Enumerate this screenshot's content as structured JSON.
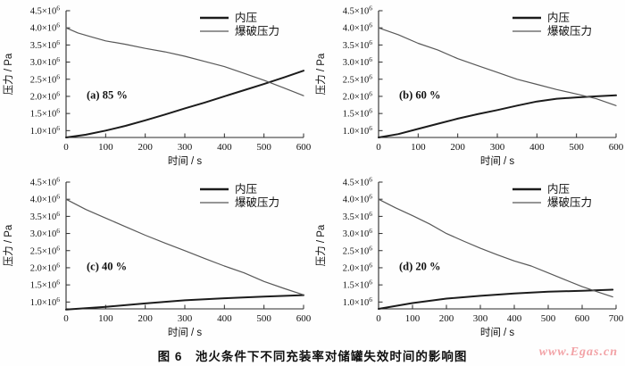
{
  "caption": "图 6　池火条件下不同充装率对储罐失效时间的影响图",
  "watermark": "www.Egas.cn",
  "legend": {
    "series1": "内压",
    "series2": "爆破压力"
  },
  "axes": {
    "x_label": "时间 / s",
    "y_label": "压力 / Pa"
  },
  "colors": {
    "neiya": "#1c1c1c",
    "baopo": "#585858",
    "axis": "#2a2a2a",
    "text": "#111111",
    "watermark": "#f2a2a6"
  },
  "chart_data": [
    {
      "type": "line",
      "label": "(a) 85 %",
      "x_max": 600,
      "x_tick_step": 100,
      "y_min": 0.8,
      "y_max": 4.5,
      "y_ticks": [
        1.0,
        1.5,
        2.0,
        2.5,
        3.0,
        3.5,
        4.0,
        4.5
      ],
      "y_unit_suffix": "×10⁶ Pa (tick values are in units of 10⁶ Pa)",
      "series": [
        {
          "name": "内压",
          "color_key": "neiya",
          "width": 2,
          "points": [
            [
              0,
              0.8
            ],
            [
              50,
              0.88
            ],
            [
              100,
              1.0
            ],
            [
              150,
              1.14
            ],
            [
              200,
              1.3
            ],
            [
              250,
              1.47
            ],
            [
              300,
              1.65
            ],
            [
              350,
              1.82
            ],
            [
              400,
              2.0
            ],
            [
              450,
              2.18
            ],
            [
              500,
              2.36
            ],
            [
              550,
              2.55
            ],
            [
              600,
              2.75
            ]
          ]
        },
        {
          "name": "爆破压力",
          "color_key": "baopo",
          "width": 1.2,
          "points": [
            [
              0,
              4.0
            ],
            [
              30,
              3.85
            ],
            [
              60,
              3.75
            ],
            [
              100,
              3.62
            ],
            [
              150,
              3.52
            ],
            [
              200,
              3.4
            ],
            [
              250,
              3.3
            ],
            [
              300,
              3.17
            ],
            [
              350,
              3.02
            ],
            [
              400,
              2.87
            ],
            [
              450,
              2.67
            ],
            [
              500,
              2.47
            ],
            [
              550,
              2.25
            ],
            [
              600,
              2.02
            ]
          ]
        }
      ]
    },
    {
      "type": "line",
      "label": "(b) 60 %",
      "x_max": 600,
      "x_tick_step": 100,
      "y_min": 0.8,
      "y_max": 4.5,
      "y_ticks": [
        1.0,
        1.5,
        2.0,
        2.5,
        3.0,
        3.5,
        4.0,
        4.5
      ],
      "series": [
        {
          "name": "内压",
          "color_key": "neiya",
          "width": 2,
          "points": [
            [
              0,
              0.8
            ],
            [
              50,
              0.9
            ],
            [
              100,
              1.05
            ],
            [
              150,
              1.2
            ],
            [
              200,
              1.35
            ],
            [
              250,
              1.48
            ],
            [
              300,
              1.6
            ],
            [
              350,
              1.73
            ],
            [
              400,
              1.85
            ],
            [
              450,
              1.93
            ],
            [
              500,
              1.97
            ],
            [
              550,
              2.0
            ],
            [
              600,
              2.03
            ]
          ]
        },
        {
          "name": "爆破压力",
          "color_key": "baopo",
          "width": 1.2,
          "points": [
            [
              0,
              4.0
            ],
            [
              50,
              3.8
            ],
            [
              100,
              3.55
            ],
            [
              150,
              3.35
            ],
            [
              200,
              3.1
            ],
            [
              250,
              2.9
            ],
            [
              300,
              2.7
            ],
            [
              350,
              2.5
            ],
            [
              400,
              2.35
            ],
            [
              450,
              2.2
            ],
            [
              500,
              2.07
            ],
            [
              550,
              1.93
            ],
            [
              600,
              1.73
            ]
          ]
        }
      ]
    },
    {
      "type": "line",
      "label": "(c) 40 %",
      "x_max": 600,
      "x_tick_step": 100,
      "y_min": 0.8,
      "y_max": 4.5,
      "y_ticks": [
        1.0,
        1.5,
        2.0,
        2.5,
        3.0,
        3.5,
        4.0,
        4.5
      ],
      "series": [
        {
          "name": "内压",
          "color_key": "neiya",
          "width": 2,
          "points": [
            [
              0,
              0.78
            ],
            [
              100,
              0.86
            ],
            [
              200,
              0.96
            ],
            [
              300,
              1.05
            ],
            [
              400,
              1.11
            ],
            [
              500,
              1.16
            ],
            [
              600,
              1.2
            ]
          ]
        },
        {
          "name": "爆破压力",
          "color_key": "baopo",
          "width": 1.2,
          "points": [
            [
              0,
              4.0
            ],
            [
              50,
              3.7
            ],
            [
              100,
              3.45
            ],
            [
              150,
              3.2
            ],
            [
              200,
              2.95
            ],
            [
              250,
              2.72
            ],
            [
              300,
              2.5
            ],
            [
              350,
              2.27
            ],
            [
              400,
              2.05
            ],
            [
              450,
              1.85
            ],
            [
              500,
              1.6
            ],
            [
              550,
              1.4
            ],
            [
              600,
              1.21
            ]
          ]
        }
      ]
    },
    {
      "type": "line",
      "label": "(d) 20 %",
      "x_max": 700,
      "x_tick_step": 100,
      "y_min": 0.8,
      "y_max": 4.5,
      "y_ticks": [
        1.0,
        1.5,
        2.0,
        2.5,
        3.0,
        3.5,
        4.0,
        4.5
      ],
      "series": [
        {
          "name": "内压",
          "color_key": "neiya",
          "width": 2,
          "points": [
            [
              0,
              0.8
            ],
            [
              100,
              0.97
            ],
            [
              200,
              1.1
            ],
            [
              300,
              1.18
            ],
            [
              400,
              1.25
            ],
            [
              500,
              1.3
            ],
            [
              600,
              1.33
            ],
            [
              690,
              1.36
            ]
          ]
        },
        {
          "name": "爆破压力",
          "color_key": "baopo",
          "width": 1.2,
          "points": [
            [
              0,
              4.0
            ],
            [
              50,
              3.75
            ],
            [
              100,
              3.52
            ],
            [
              150,
              3.28
            ],
            [
              200,
              3.0
            ],
            [
              250,
              2.78
            ],
            [
              300,
              2.57
            ],
            [
              350,
              2.38
            ],
            [
              400,
              2.2
            ],
            [
              450,
              2.05
            ],
            [
              500,
              1.85
            ],
            [
              550,
              1.65
            ],
            [
              600,
              1.45
            ],
            [
              650,
              1.28
            ],
            [
              690,
              1.15
            ]
          ]
        }
      ]
    }
  ]
}
